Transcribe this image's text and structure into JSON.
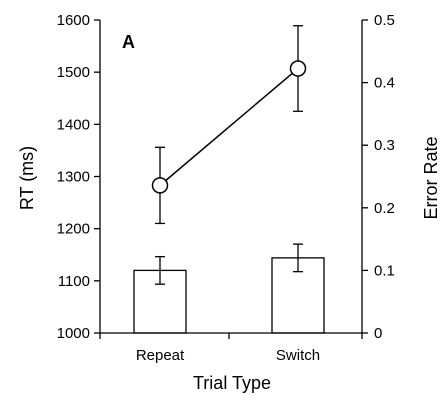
{
  "chart_data": {
    "type": "bar+line",
    "panel_label": "A",
    "categories": [
      "Repeat",
      "Switch"
    ],
    "xlabel": "Trial Type",
    "ylabel_left": "RT (ms)",
    "ylabel_right": "Error Rate",
    "ylim_left": [
      1000,
      1600
    ],
    "yticks_left": [
      1000,
      1100,
      1200,
      1300,
      1400,
      1500,
      1600
    ],
    "ylim_right": [
      0,
      0.5
    ],
    "yticks_right": [
      "0",
      "0.1",
      "0.2",
      "0.3",
      "0.4",
      "0.5"
    ],
    "grid": false,
    "series": [
      {
        "kind": "bar",
        "axis": "right",
        "values": [
          0.1,
          0.12
        ],
        "errors": [
          0.022,
          0.022
        ]
      },
      {
        "kind": "line",
        "axis": "left",
        "values": [
          1283,
          1507
        ],
        "errors": [
          73,
          82
        ]
      }
    ]
  }
}
